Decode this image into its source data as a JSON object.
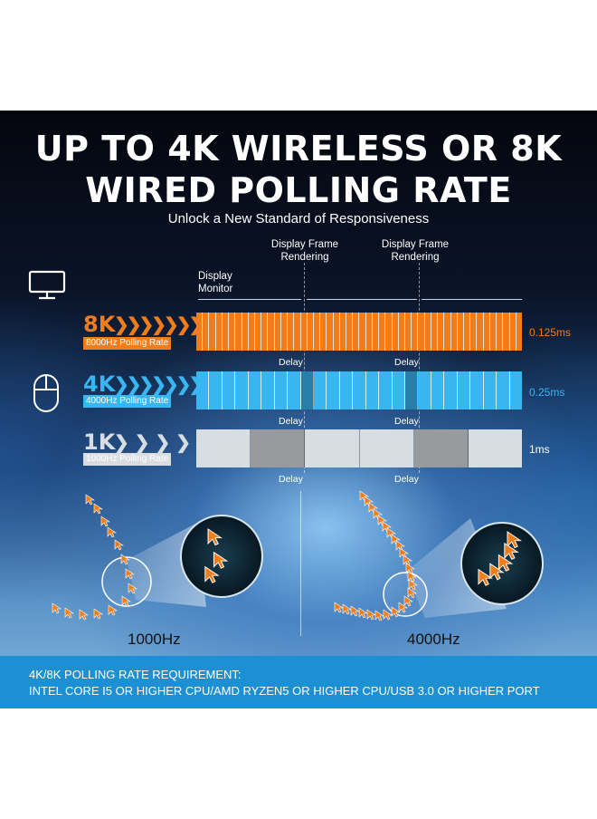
{
  "headline": {
    "line1": "UP TO 4K WIRELESS OR 8K",
    "line2": "WIRED POLLING RATE",
    "subtitle": "Unlock a New Standard of Responsiveness"
  },
  "diagram": {
    "display_monitor_label_1": "Display",
    "display_monitor_label_2": "Monitor",
    "frame_rendering_1_line1": "Display Frame",
    "frame_rendering_1_line2": "Rendering",
    "frame_rendering_2_line1": "Display Frame",
    "frame_rendering_2_line2": "Rendering",
    "rows": [
      {
        "big": "8K",
        "sub": "8000Hz Polling Rate",
        "value": "0.125ms",
        "color": "#f07d1a",
        "segments": 50
      },
      {
        "big": "4K",
        "sub": "4000Hz Polling Rate",
        "value": "0.25ms",
        "color": "#38b6f2",
        "segments": 25
      },
      {
        "big": "1K",
        "sub": "1000Hz Polling Rate",
        "value": "1ms",
        "color": "#d8dde2",
        "segments": 6
      }
    ],
    "delay_label": "Delay"
  },
  "comparison": {
    "left_label": "1000Hz",
    "right_label": "4000Hz"
  },
  "requirement": {
    "line1": "4K/8K POLLING RATE REQUIREMENT:",
    "line2": "INTEL CORE I5 OR HIGHER CPU/AMD RYZEN5 OR HIGHER CPU/USB 3.0 OR HIGHER PORT"
  },
  "colors": {
    "orange": "#f07d1a",
    "blue": "#38b6f2",
    "grey": "#d8dde2",
    "banner": "#1c90d3"
  }
}
